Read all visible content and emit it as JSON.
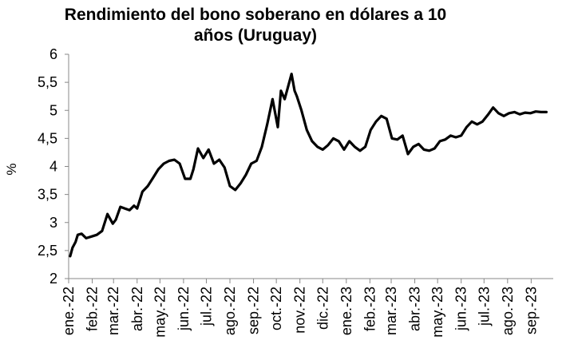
{
  "chart_data": {
    "type": "line",
    "title_line1": "Rendimiento del bono soberano en dólares a 10",
    "title_line2": "años (Uruguay)",
    "xlabel": "",
    "ylabel": "%",
    "ylim": [
      2,
      6
    ],
    "yticks": [
      "2",
      "2,5",
      "3",
      "3,5",
      "4",
      "4,5",
      "5",
      "5,5",
      "6"
    ],
    "x_tick_labels": [
      "ene.-22",
      "feb.-22",
      "mar.-22",
      "abr.-22",
      "may.-22",
      "jun.-22",
      "jul.-22",
      "ago.-22",
      "sep.-22",
      "oct.-22",
      "nov.-22",
      "dic.-22",
      "ene.-23",
      "feb.-23",
      "mar.-23",
      "abr.-23",
      "may.-23",
      "jun.-23",
      "jul.-23",
      "ago.-23",
      "sep.-23"
    ],
    "grid": false,
    "legend": "none",
    "line_color": "#000000",
    "series": [
      {
        "x": [
          "2022-01-03",
          "2022-01-06",
          "2022-01-10",
          "2022-01-13",
          "2022-01-18",
          "2022-01-24",
          "2022-01-31",
          "2022-02-07",
          "2022-02-14",
          "2022-02-21",
          "2022-02-28",
          "2022-03-04",
          "2022-03-10",
          "2022-03-16",
          "2022-03-22",
          "2022-03-28",
          "2022-04-01",
          "2022-04-08",
          "2022-04-15",
          "2022-04-22",
          "2022-04-29",
          "2022-05-06",
          "2022-05-13",
          "2022-05-20",
          "2022-05-27",
          "2022-06-03",
          "2022-06-10",
          "2022-06-14",
          "2022-06-20",
          "2022-06-27",
          "2022-07-04",
          "2022-07-11",
          "2022-07-18",
          "2022-07-25",
          "2022-08-01",
          "2022-08-08",
          "2022-08-15",
          "2022-08-22",
          "2022-08-29",
          "2022-09-05",
          "2022-09-12",
          "2022-09-19",
          "2022-09-26",
          "2022-10-03",
          "2022-10-07",
          "2022-10-12",
          "2022-10-17",
          "2022-10-21",
          "2022-10-25",
          "2022-10-28",
          "2022-11-03",
          "2022-11-10",
          "2022-11-17",
          "2022-11-24",
          "2022-12-01",
          "2022-12-08",
          "2022-12-15",
          "2022-12-22",
          "2022-12-29",
          "2023-01-05",
          "2023-01-12",
          "2023-01-19",
          "2023-01-26",
          "2023-02-02",
          "2023-02-09",
          "2023-02-16",
          "2023-02-23",
          "2023-03-02",
          "2023-03-09",
          "2023-03-16",
          "2023-03-23",
          "2023-03-30",
          "2023-04-06",
          "2023-04-13",
          "2023-04-20",
          "2023-04-27",
          "2023-05-04",
          "2023-05-11",
          "2023-05-18",
          "2023-05-25",
          "2023-06-01",
          "2023-06-08",
          "2023-06-15",
          "2023-06-22",
          "2023-06-29",
          "2023-07-06",
          "2023-07-13",
          "2023-07-20",
          "2023-07-27",
          "2023-08-03",
          "2023-08-10",
          "2023-08-17",
          "2023-08-24",
          "2023-08-31",
          "2023-09-07",
          "2023-09-14",
          "2023-09-21"
        ],
        "y": [
          2.4,
          2.55,
          2.65,
          2.78,
          2.8,
          2.72,
          2.75,
          2.78,
          2.85,
          3.15,
          2.98,
          3.05,
          3.28,
          3.25,
          3.22,
          3.3,
          3.25,
          3.55,
          3.65,
          3.8,
          3.95,
          4.05,
          4.1,
          4.12,
          4.05,
          3.78,
          3.78,
          3.95,
          4.32,
          4.15,
          4.3,
          4.05,
          4.12,
          3.98,
          3.65,
          3.58,
          3.7,
          3.85,
          4.05,
          4.1,
          4.35,
          4.75,
          5.2,
          4.7,
          5.35,
          5.2,
          5.45,
          5.65,
          5.35,
          5.25,
          5.0,
          4.65,
          4.45,
          4.35,
          4.3,
          4.38,
          4.5,
          4.45,
          4.3,
          4.45,
          4.35,
          4.28,
          4.35,
          4.65,
          4.8,
          4.9,
          4.85,
          4.5,
          4.48,
          4.55,
          4.22,
          4.35,
          4.4,
          4.3,
          4.28,
          4.32,
          4.45,
          4.48,
          4.55,
          4.52,
          4.55,
          4.7,
          4.8,
          4.75,
          4.8,
          4.92,
          5.05,
          4.95,
          4.9,
          4.95,
          4.97,
          4.93,
          4.96,
          4.95,
          4.98,
          4.97,
          4.97
        ]
      }
    ]
  }
}
